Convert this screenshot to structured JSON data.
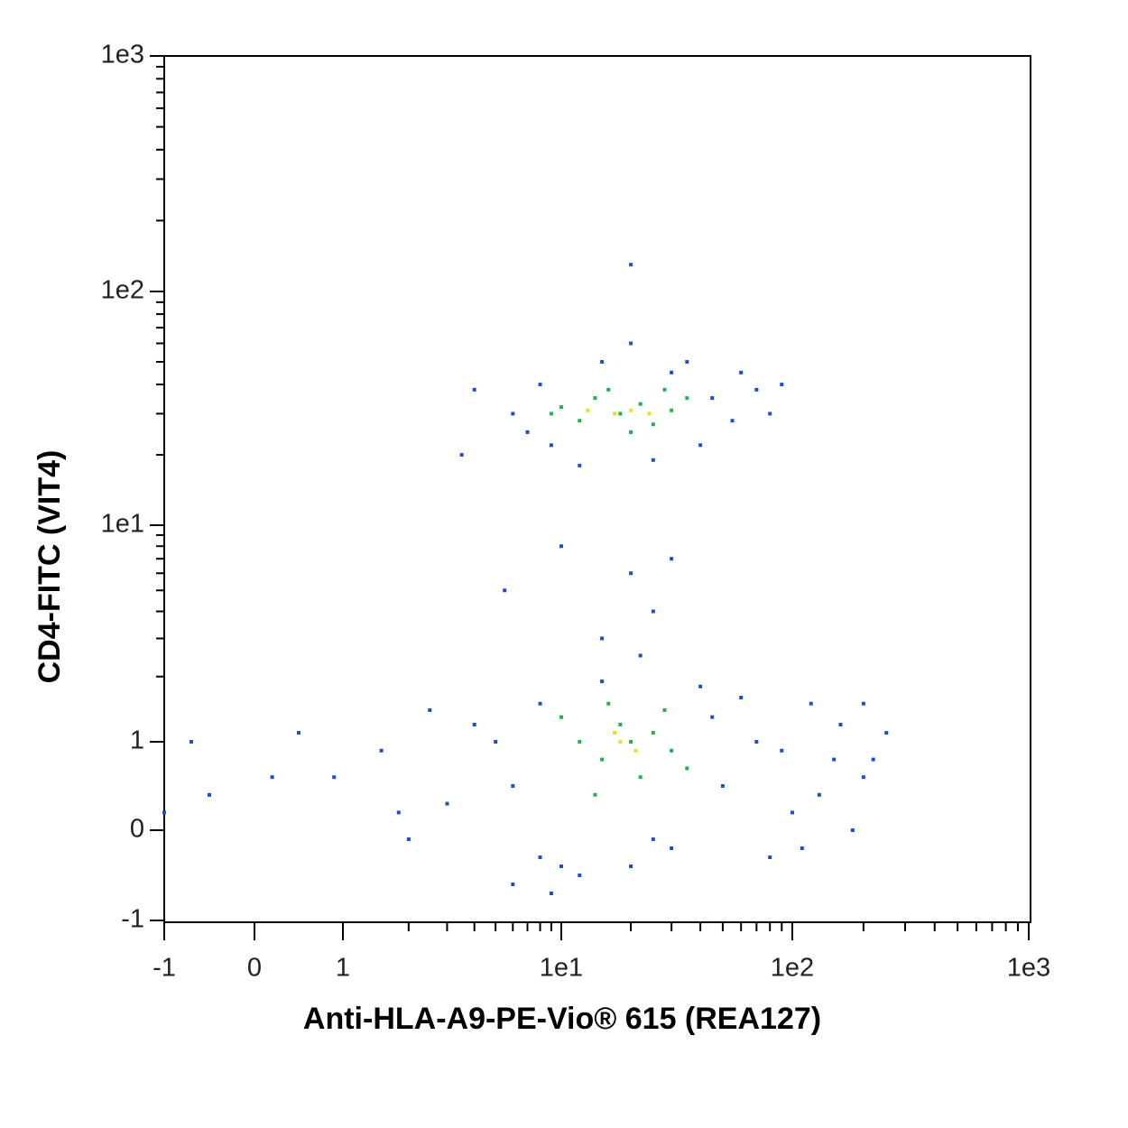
{
  "chart_data": {
    "type": "scatter",
    "x_label": "Anti-HLA-A9-PE-Vio® 615 (REA127)",
    "y_label": "CD4-FITC (VIT4)",
    "xlim": [
      -1,
      1000
    ],
    "ylim": [
      -1,
      1000
    ],
    "xticks": [
      -1,
      0,
      1,
      {
        "value": 10,
        "label": "1e1"
      },
      {
        "value": 100,
        "label": "1e2"
      },
      {
        "value": 1000,
        "label": "1e3"
      }
    ],
    "yticks": [
      -1,
      0,
      1,
      {
        "value": 10,
        "label": "1e1"
      },
      {
        "value": 100,
        "label": "1e2"
      },
      {
        "value": 1000,
        "label": "1e3"
      }
    ],
    "xminorticks": [
      2,
      3,
      4,
      5,
      6,
      7,
      8,
      9,
      20,
      30,
      40,
      50,
      60,
      70,
      80,
      90,
      200,
      300,
      400,
      500,
      600,
      700,
      800,
      900
    ],
    "yminorticks": [
      2,
      3,
      4,
      5,
      6,
      7,
      8,
      9,
      20,
      30,
      40,
      50,
      60,
      70,
      80,
      90,
      200,
      300,
      400,
      500,
      600,
      700,
      800,
      900
    ],
    "series": [
      {
        "color": "#1f4fc8",
        "x": [
          6,
          8,
          9,
          30,
          45,
          55,
          70,
          12,
          25,
          40,
          7,
          4,
          3.5,
          60,
          90,
          80,
          35,
          15,
          20,
          20,
          10,
          20,
          25,
          15,
          22,
          5.5,
          30,
          8,
          5,
          6,
          4,
          3,
          8,
          10,
          30,
          50,
          70,
          100,
          120,
          150,
          200,
          180,
          60,
          40,
          15,
          12,
          25,
          80,
          110,
          2.5,
          1.5,
          0.5,
          0.2,
          -0.5,
          -0.7,
          -1,
          0.9,
          1.8,
          2,
          6,
          9,
          20,
          45,
          90,
          130,
          160,
          220,
          250,
          200
        ],
        "y": [
          30,
          40,
          22,
          45,
          35,
          28,
          38,
          18,
          19,
          22,
          25,
          38,
          20,
          45,
          40,
          30,
          50,
          50,
          60,
          130,
          8,
          6,
          4,
          3,
          2.5,
          5,
          7,
          1.5,
          1,
          0.5,
          1.2,
          0.3,
          -0.3,
          -0.4,
          -0.2,
          0.5,
          1,
          0.2,
          1.5,
          0.8,
          0.6,
          0,
          1.6,
          1.8,
          1.9,
          -0.5,
          -0.1,
          -0.3,
          -0.2,
          1.4,
          0.9,
          1.1,
          0.6,
          0.4,
          1,
          0.2,
          0.6,
          0.2,
          -0.1,
          -0.6,
          -0.7,
          -0.4,
          1.3,
          0.9,
          0.4,
          1.2,
          0.8,
          1.1,
          1.5
        ]
      },
      {
        "color": "#22b14c",
        "x": [
          10,
          12,
          14,
          18,
          22,
          25,
          30,
          35,
          16,
          20,
          9,
          28,
          12,
          15,
          18,
          20,
          22,
          25,
          30,
          16,
          14,
          28,
          35,
          10
        ],
        "y": [
          32,
          28,
          35,
          30,
          33,
          27,
          31,
          35,
          38,
          25,
          30,
          38,
          1,
          0.8,
          1.2,
          1,
          0.6,
          1.1,
          0.9,
          1.5,
          0.4,
          1.4,
          0.7,
          1.3
        ]
      },
      {
        "color": "#d8e81a",
        "x": [
          13,
          17,
          20,
          24,
          18,
          21,
          17
        ],
        "y": [
          31,
          30,
          31,
          30,
          1,
          0.9,
          1.1
        ]
      }
    ]
  }
}
